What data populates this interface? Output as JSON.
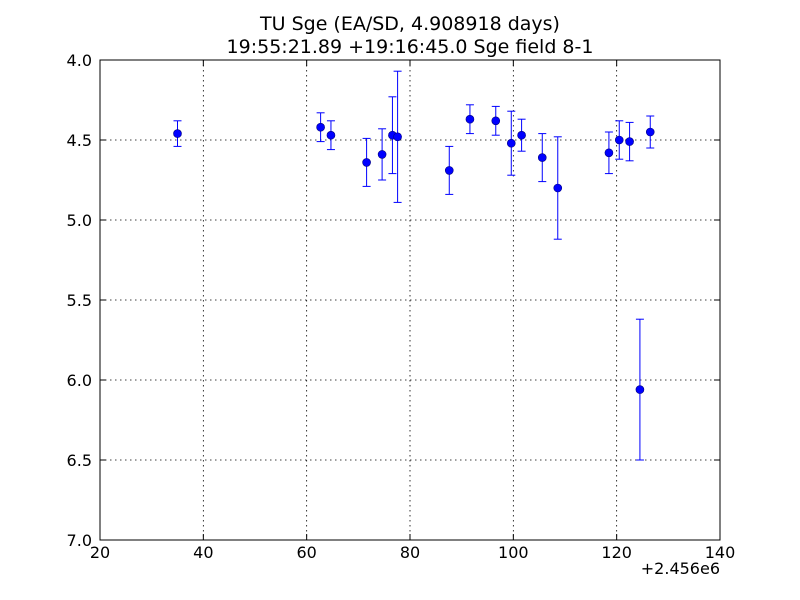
{
  "chart_data": {
    "type": "scatter",
    "title": "TU Sge (EA/SD, 4.908918 days)",
    "subtitle": "19:55:21.89 +19:16:45.0 Sge field 8-1",
    "xlim": [
      20,
      140
    ],
    "ylim": [
      7.0,
      4.0
    ],
    "y_inverted": true,
    "x_ticks": [
      20,
      40,
      60,
      80,
      100,
      120,
      140
    ],
    "x_tick_labels": [
      "20",
      "40",
      "60",
      "80",
      "100",
      "120",
      "140"
    ],
    "y_ticks": [
      4.0,
      4.5,
      5.0,
      5.5,
      6.0,
      6.5,
      7.0
    ],
    "y_tick_labels": [
      "4.0",
      "4.5",
      "5.0",
      "5.5",
      "6.0",
      "6.5",
      "7.0"
    ],
    "x_offset_label": "+2.456e6",
    "grid": true,
    "color": "#0000ff",
    "points": [
      {
        "x": 35.0,
        "y": 4.46,
        "err": 0.08
      },
      {
        "x": 62.7,
        "y": 4.42,
        "err": 0.09
      },
      {
        "x": 64.7,
        "y": 4.47,
        "err": 0.09
      },
      {
        "x": 71.6,
        "y": 4.64,
        "err": 0.15
      },
      {
        "x": 74.6,
        "y": 4.59,
        "err": 0.16
      },
      {
        "x": 76.6,
        "y": 4.47,
        "err": 0.24
      },
      {
        "x": 77.6,
        "y": 4.48,
        "err": 0.41
      },
      {
        "x": 87.6,
        "y": 4.69,
        "err": 0.15
      },
      {
        "x": 91.6,
        "y": 4.37,
        "err": 0.09
      },
      {
        "x": 96.6,
        "y": 4.38,
        "err": 0.09
      },
      {
        "x": 99.6,
        "y": 4.52,
        "err": 0.2
      },
      {
        "x": 101.6,
        "y": 4.47,
        "err": 0.1
      },
      {
        "x": 105.6,
        "y": 4.61,
        "err": 0.15
      },
      {
        "x": 108.6,
        "y": 4.8,
        "err": 0.32
      },
      {
        "x": 118.5,
        "y": 4.58,
        "err": 0.13
      },
      {
        "x": 120.5,
        "y": 4.5,
        "err": 0.12
      },
      {
        "x": 122.5,
        "y": 4.51,
        "err": 0.12
      },
      {
        "x": 124.5,
        "y": 6.06,
        "err": 0.44
      },
      {
        "x": 126.5,
        "y": 4.45,
        "err": 0.1
      }
    ]
  }
}
